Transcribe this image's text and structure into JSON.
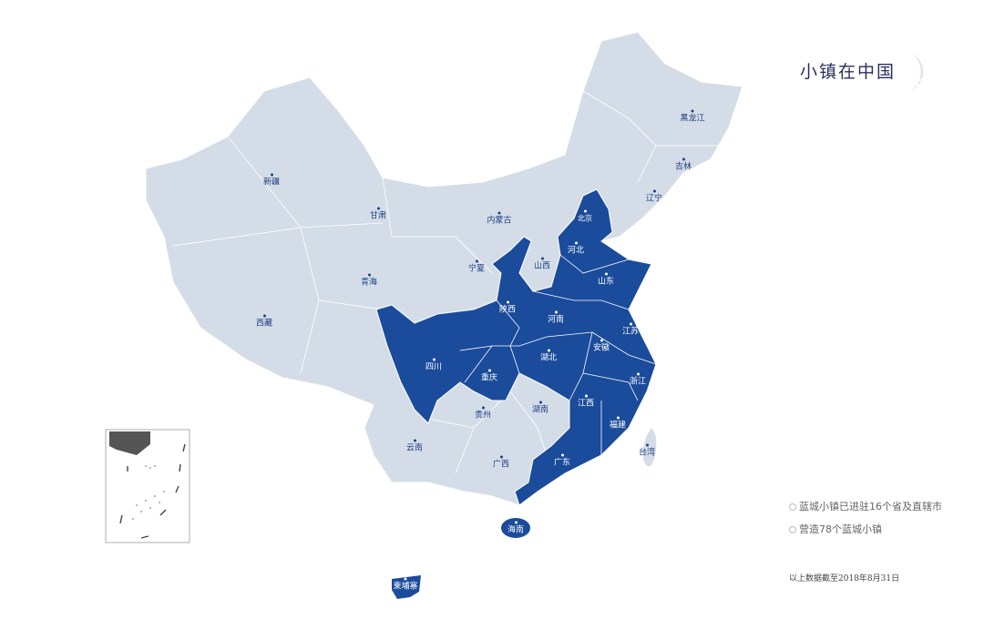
{
  "title": "小镇在中国",
  "colors": {
    "covered": "#1b4b9b",
    "uncovered": "#d4dde7",
    "border": "#ffffff",
    "label_light": "#1e3f86"
  },
  "legend": {
    "items": [
      "蓝城小镇已进驻16个省及直辖市",
      "营造78个蓝城小镇"
    ]
  },
  "footnote": "以上数据截至2018年8月31日",
  "regions": [
    {
      "name": "新疆",
      "covered": false
    },
    {
      "name": "西藏",
      "covered": false
    },
    {
      "name": "青海",
      "covered": false
    },
    {
      "name": "甘肃",
      "covered": false
    },
    {
      "name": "内蒙古",
      "covered": false
    },
    {
      "name": "宁夏",
      "covered": false
    },
    {
      "name": "山西",
      "covered": false
    },
    {
      "name": "北京",
      "covered": true
    },
    {
      "name": "河北",
      "covered": true
    },
    {
      "name": "山东",
      "covered": true
    },
    {
      "name": "陕西",
      "covered": true
    },
    {
      "name": "河南",
      "covered": true
    },
    {
      "name": "江苏",
      "covered": true
    },
    {
      "name": "安徽",
      "covered": true
    },
    {
      "name": "四川",
      "covered": true
    },
    {
      "name": "重庆",
      "covered": true
    },
    {
      "name": "湖北",
      "covered": true
    },
    {
      "name": "浙江",
      "covered": true
    },
    {
      "name": "江西",
      "covered": true
    },
    {
      "name": "湖南",
      "covered": false
    },
    {
      "name": "贵州",
      "covered": false
    },
    {
      "name": "福建",
      "covered": true
    },
    {
      "name": "云南",
      "covered": false
    },
    {
      "name": "广西",
      "covered": false
    },
    {
      "name": "广东",
      "covered": true
    },
    {
      "name": "海南",
      "covered": true
    },
    {
      "name": "台湾",
      "covered": false
    },
    {
      "name": "黑龙江",
      "covered": false
    },
    {
      "name": "吉林",
      "covered": false
    },
    {
      "name": "辽宁",
      "covered": false
    },
    {
      "name": "柬埔寨",
      "covered": true
    }
  ]
}
